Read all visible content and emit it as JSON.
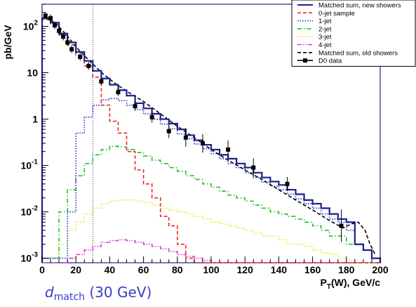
{
  "caption": {
    "symbol": "d",
    "subscript": "match",
    "text": "(30 GeV)"
  },
  "colors": {
    "matched_new": "#1a1f8c",
    "jet0": "#e8291c",
    "jet1": "#2b2bcf",
    "jet2": "#22c122",
    "jet3": "#f0e62a",
    "jet4": "#d43bd4",
    "matched_old": "#000000",
    "data": "#000000"
  },
  "chart_data": {
    "type": "line",
    "subtype": "step-histogram",
    "title": "",
    "xlabel": "P_T(W), GeV/c",
    "ylabel": "pb/GeV",
    "xlim": [
      0,
      200
    ],
    "ylim": [
      0.0008,
      300
    ],
    "yscale": "log",
    "x_ticks": [
      "0",
      "20",
      "40",
      "60",
      "80",
      "100",
      "120",
      "140",
      "160",
      "180",
      "200"
    ],
    "y_ticks": [
      {
        "base": "10",
        "exp": "-3"
      },
      {
        "base": "10",
        "exp": "-2"
      },
      {
        "base": "10",
        "exp": "-1"
      },
      {
        "base": "1",
        "exp": ""
      },
      {
        "base": "10",
        "exp": ""
      },
      {
        "base": "10",
        "exp": "2"
      }
    ],
    "grid": false,
    "legend_position": "top-right",
    "vertical_line_x": 30,
    "bin_edges": [
      0,
      5,
      10,
      15,
      20,
      25,
      30,
      35,
      40,
      45,
      50,
      55,
      60,
      65,
      70,
      75,
      80,
      85,
      90,
      95,
      100,
      105,
      110,
      115,
      120,
      125,
      130,
      135,
      140,
      145,
      150,
      155,
      160,
      165,
      170,
      175,
      180,
      185,
      190,
      195,
      200
    ],
    "series": [
      {
        "name": "Matched sum, new showers",
        "style": "solid",
        "key": "matched_new",
        "values": [
          150,
          120,
          70,
          45,
          28,
          18,
          11,
          7.5,
          5.5,
          4.2,
          3.2,
          2.2,
          1.7,
          1.3,
          1.0,
          0.8,
          0.6,
          0.45,
          0.35,
          0.28,
          0.22,
          0.17,
          0.14,
          0.11,
          0.09,
          0.07,
          0.055,
          0.045,
          0.038,
          0.03,
          0.024,
          0.018,
          0.015,
          0.012,
          0.009,
          0.007,
          0.006,
          0.002,
          0.0015,
          0.001
        ]
      },
      {
        "name": "0-jet sample",
        "style": "dashed",
        "key": "jet0",
        "values": [
          140,
          110,
          65,
          40,
          24,
          14,
          8,
          2.0,
          0.9,
          0.5,
          0.2,
          0.08,
          0.04,
          0.02,
          0.008,
          0.005,
          0.002,
          0.001,
          0.0008,
          0.0008,
          0.0008,
          0.0008,
          0.0008,
          0.0008,
          0.0008,
          0.0008,
          0.0008,
          0.0008,
          0.0008,
          0.0008,
          0.0008,
          0.0008,
          0.0008,
          0.0008,
          0.0008,
          0.0008,
          0.0008,
          0.0008,
          0.0008,
          0.0008
        ]
      },
      {
        "name": "1-jet",
        "style": "dotted",
        "key": "jet1",
        "values": [
          0.001,
          0.001,
          0.001,
          0.01,
          0.5,
          1.1,
          2.0,
          2.6,
          2.8,
          2.5,
          2.0,
          1.6,
          1.3,
          1.0,
          0.78,
          0.62,
          0.48,
          0.38,
          0.29,
          0.23,
          0.18,
          0.14,
          0.11,
          0.09,
          0.07,
          0.055,
          0.044,
          0.036,
          0.03,
          0.024,
          0.019,
          0.015,
          0.012,
          0.009,
          0.007,
          0.006,
          0.004,
          0.002,
          0.0015,
          0.001
        ]
      },
      {
        "name": "2-jet",
        "style": "dash-dot",
        "key": "jet2",
        "values": [
          0.001,
          0.001,
          0.01,
          0.03,
          0.06,
          0.11,
          0.17,
          0.22,
          0.26,
          0.25,
          0.22,
          0.19,
          0.16,
          0.13,
          0.11,
          0.09,
          0.075,
          0.06,
          0.05,
          0.04,
          0.034,
          0.028,
          0.023,
          0.02,
          0.017,
          0.014,
          0.012,
          0.01,
          0.009,
          0.008,
          0.007,
          0.006,
          0.005,
          0.004,
          0.003,
          0.003,
          0.002,
          0.002,
          0.0015,
          0.001
        ]
      },
      {
        "name": "3-jet",
        "style": "dotted",
        "key": "jet3",
        "values": [
          0.001,
          0.001,
          0.002,
          0.004,
          0.006,
          0.009,
          0.012,
          0.015,
          0.017,
          0.018,
          0.018,
          0.017,
          0.016,
          0.014,
          0.012,
          0.011,
          0.01,
          0.009,
          0.008,
          0.007,
          0.006,
          0.0055,
          0.005,
          0.0045,
          0.004,
          0.0035,
          0.003,
          0.003,
          0.0025,
          0.002,
          0.002,
          0.0018,
          0.0015,
          0.0013,
          0.0012,
          0.001,
          0.0009,
          0.0008,
          0.0008,
          0.0008
        ]
      },
      {
        "name": "4-jet",
        "style": "dash-dot-dot",
        "key": "jet4",
        "values": [
          0.0008,
          0.0008,
          0.0008,
          0.001,
          0.0012,
          0.0015,
          0.0018,
          0.0022,
          0.0024,
          0.0025,
          0.0024,
          0.0022,
          0.002,
          0.0018,
          0.0016,
          0.0014,
          0.0012,
          0.0011,
          0.001,
          0.0009,
          0.0008,
          0.0008,
          0.0008,
          0.0008,
          0.0008,
          0.0008,
          0.0008,
          0.0008,
          0.0008,
          0.0008,
          0.0008,
          0.0008,
          0.0008,
          0.0008,
          0.0008,
          0.0008,
          0.0008,
          0.0008,
          0.0008,
          0.0008
        ]
      },
      {
        "name": "Matched sum, old showers",
        "style": "dashed-smooth",
        "key": "matched_old",
        "x": [
          2,
          8,
          14,
          20,
          28,
          36,
          44,
          52,
          60,
          70,
          80,
          90,
          100,
          110,
          120,
          130,
          140,
          150,
          160,
          170,
          178,
          183,
          187,
          191,
          194,
          197
        ],
        "values": [
          155,
          118,
          68,
          36,
          18,
          9.5,
          5.6,
          3.6,
          2.4,
          1.3,
          0.7,
          0.4,
          0.22,
          0.13,
          0.08,
          0.05,
          0.03,
          0.018,
          0.011,
          0.0065,
          0.0045,
          0.0055,
          0.006,
          0.004,
          0.002,
          0.0012
        ]
      }
    ],
    "data_points": {
      "name": "D0 data",
      "key": "data",
      "points": [
        {
          "x": 2,
          "y": 170,
          "err": [
            0.08,
            0.08
          ]
        },
        {
          "x": 5,
          "y": 150,
          "err": [
            0.08,
            0.08
          ]
        },
        {
          "x": 7.5,
          "y": 105,
          "err": [
            0.08,
            0.08
          ]
        },
        {
          "x": 10,
          "y": 80,
          "err": [
            0.08,
            0.08
          ]
        },
        {
          "x": 12.5,
          "y": 60,
          "err": [
            0.08,
            0.08
          ]
        },
        {
          "x": 15,
          "y": 45,
          "err": [
            0.08,
            0.08
          ]
        },
        {
          "x": 17.5,
          "y": 32,
          "err": [
            0.08,
            0.08
          ]
        },
        {
          "x": 22.5,
          "y": 22,
          "err": [
            0.08,
            0.08
          ]
        },
        {
          "x": 27.5,
          "y": 14,
          "err": [
            0.08,
            0.08
          ]
        },
        {
          "x": 35,
          "y": 6.5,
          "err": [
            0.08,
            0.08
          ]
        },
        {
          "x": 45,
          "y": 3.8,
          "err": [
            0.08,
            0.08
          ]
        },
        {
          "x": 55,
          "y": 1.9,
          "err": [
            0.1,
            0.1
          ]
        },
        {
          "x": 65,
          "y": 1.1,
          "err": [
            0.12,
            0.12
          ]
        },
        {
          "x": 75,
          "y": 0.55,
          "err": [
            0.15,
            0.15
          ]
        },
        {
          "x": 85,
          "y": 0.4,
          "err": [
            0.2,
            0.2
          ]
        },
        {
          "x": 95,
          "y": 0.3,
          "err": [
            0.2,
            0.2
          ]
        },
        {
          "x": 110,
          "y": 0.22,
          "err": [
            0.15,
            0.2
          ]
        },
        {
          "x": 125,
          "y": 0.09,
          "err": [
            0.2,
            0.2
          ]
        },
        {
          "x": 145,
          "y": 0.04,
          "err": [
            0.15,
            0.15
          ]
        },
        {
          "x": 177,
          "y": 0.005,
          "err": [
            0.35,
            0.35
          ]
        }
      ]
    }
  }
}
